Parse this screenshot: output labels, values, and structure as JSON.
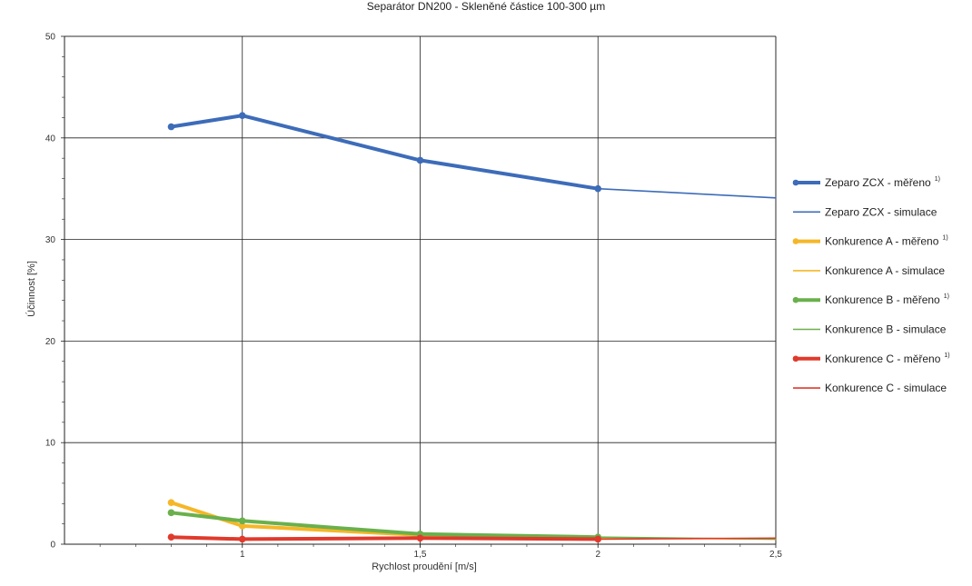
{
  "chart_data": {
    "type": "line",
    "title": "Separátor DN200 - Skleněné částice 100-300 µm",
    "xlabel": "Rychlost proudění [m/s]",
    "ylabel": "Účinnost [%]",
    "xlim": [
      0.5,
      2.5
    ],
    "ylim": [
      0,
      50
    ],
    "x_ticks": [
      {
        "value": 1,
        "label": "1"
      },
      {
        "value": 1.5,
        "label": "1,5"
      },
      {
        "value": 2,
        "label": "2"
      },
      {
        "value": 2.5,
        "label": "2,5"
      }
    ],
    "y_ticks": [
      {
        "value": 0,
        "label": "0"
      },
      {
        "value": 10,
        "label": "10"
      },
      {
        "value": 20,
        "label": "20"
      },
      {
        "value": 30,
        "label": "30"
      },
      {
        "value": 40,
        "label": "40"
      },
      {
        "value": 50,
        "label": "50"
      }
    ],
    "grid": true,
    "legend_position": "right",
    "footnote_mark": "1)",
    "series": [
      {
        "name": "Zeparo ZCX - měřeno",
        "footnote": true,
        "kind": "measured",
        "color": "#3d6cb9",
        "points": [
          [
            0.8,
            41.1
          ],
          [
            1.0,
            42.2
          ],
          [
            1.5,
            37.8
          ],
          [
            2.0,
            35.0
          ]
        ]
      },
      {
        "name": "Zeparo ZCX - simulace",
        "footnote": false,
        "kind": "simulation",
        "color": "#3d6cb9",
        "points": [
          [
            2.0,
            35.0
          ],
          [
            2.5,
            34.1
          ]
        ]
      },
      {
        "name": "Konkurence A - měřeno",
        "footnote": true,
        "kind": "measured",
        "color": "#f5b728",
        "points": [
          [
            0.8,
            4.1
          ],
          [
            1.0,
            1.8
          ],
          [
            1.5,
            0.9
          ],
          [
            2.0,
            0.6
          ]
        ]
      },
      {
        "name": "Konkurence A - simulace",
        "footnote": false,
        "kind": "simulation",
        "color": "#f5b728",
        "points": [
          [
            2.0,
            0.6
          ],
          [
            2.5,
            0.5
          ]
        ]
      },
      {
        "name": "Konkurence B - měřeno",
        "footnote": true,
        "kind": "measured",
        "color": "#6ab04c",
        "points": [
          [
            0.8,
            3.1
          ],
          [
            1.0,
            2.3
          ],
          [
            1.5,
            1.0
          ],
          [
            2.0,
            0.7
          ]
        ]
      },
      {
        "name": "Konkurence B - simulace",
        "footnote": false,
        "kind": "simulation",
        "color": "#6ab04c",
        "points": [
          [
            2.0,
            0.7
          ],
          [
            2.5,
            0.5
          ]
        ]
      },
      {
        "name": "Konkurence C - měřeno",
        "footnote": true,
        "kind": "measured",
        "color": "#e03a2c",
        "points": [
          [
            0.8,
            0.7
          ],
          [
            1.0,
            0.5
          ],
          [
            1.5,
            0.6
          ],
          [
            2.0,
            0.5
          ]
        ]
      },
      {
        "name": "Konkurence C - simulace",
        "footnote": false,
        "kind": "simulation",
        "color": "#e03a2c",
        "points": [
          [
            2.0,
            0.5
          ],
          [
            2.5,
            0.6
          ]
        ]
      }
    ]
  }
}
